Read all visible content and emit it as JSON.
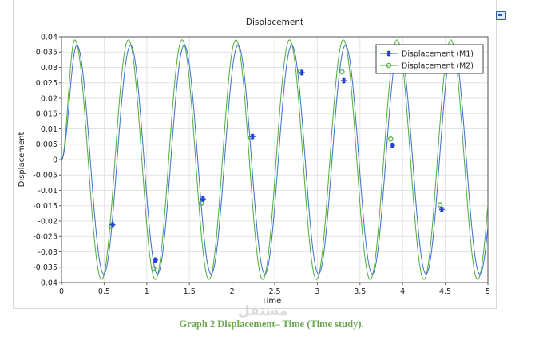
{
  "chart_data": {
    "type": "line",
    "title": "Displacement",
    "xlabel": "Time",
    "ylabel": "Displacement",
    "xlim": [
      0,
      5
    ],
    "ylim": [
      -0.04,
      0.04
    ],
    "x_ticks": [
      0,
      0.5,
      1,
      1.5,
      2,
      2.5,
      3,
      3.5,
      4,
      4.5,
      5
    ],
    "y_ticks": [
      0.04,
      0.035,
      0.03,
      0.025,
      0.02,
      0.015,
      0.01,
      0.005,
      0,
      -0.005,
      -0.01,
      -0.015,
      -0.02,
      -0.025,
      -0.03,
      -0.035,
      -0.04
    ],
    "x_tick_labels": [
      "0",
      "0.5",
      "1",
      "1.5",
      "2",
      "2.5",
      "3",
      "3.5",
      "4",
      "4.5",
      "5"
    ],
    "y_tick_labels": [
      "0.04",
      "0.035",
      "0.03",
      "0.025",
      "0.02",
      "0.015",
      "0.01",
      "0.005",
      "0",
      "-0.005",
      "-0.01",
      "-0.015",
      "-0.02",
      "-0.025",
      "-0.03",
      "-0.035",
      "-0.04"
    ],
    "grid": true,
    "legend_position": "top-right",
    "series": [
      {
        "name": "Displacement (M1)",
        "color": "#3d6fd0",
        "marker": "asterisk",
        "amplitude": 0.0372,
        "period": 0.63,
        "peak_times": [
          0.18,
          0.81,
          1.44,
          2.07,
          2.7,
          3.33,
          3.96,
          4.59
        ],
        "marker_points": [
          [
            0.6,
            -0.0212
          ],
          [
            1.1,
            -0.0327
          ],
          [
            1.66,
            -0.0128
          ],
          [
            2.24,
            0.0075
          ],
          [
            2.82,
            0.0283
          ],
          [
            3.31,
            0.0257
          ],
          [
            3.88,
            0.0046
          ],
          [
            4.46,
            -0.0162
          ]
        ]
      },
      {
        "name": "Displacement (M2)",
        "color": "#4caf3c",
        "marker": "circle",
        "amplitude": 0.039,
        "period": 0.63,
        "peak_times": [
          0.155,
          0.785,
          1.415,
          2.045,
          2.675,
          3.305,
          3.935,
          4.565
        ],
        "marker_points": [
          [
            0.58,
            -0.0217
          ],
          [
            1.08,
            -0.0354
          ],
          [
            1.64,
            -0.0142
          ],
          [
            2.22,
            0.0071
          ],
          [
            2.8,
            0.0287
          ],
          [
            3.29,
            0.0286
          ],
          [
            3.86,
            0.0067
          ],
          [
            4.44,
            -0.0147
          ]
        ]
      }
    ]
  },
  "caption": "Graph 2 Displacement– Time (Time study).",
  "caption_color": "#6aa84f",
  "watermark": "مستقل",
  "toolbar_icon": "image-export-icon"
}
